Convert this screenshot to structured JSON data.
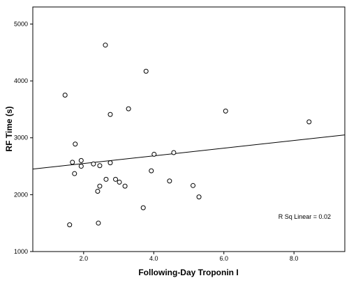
{
  "chart_data": {
    "type": "scatter",
    "title": "",
    "xlabel": "Following-Day Troponin I",
    "ylabel": "RF Time (s)",
    "xlim": [
      0.55,
      9.45
    ],
    "ylim": [
      1000,
      5300
    ],
    "x_ticks": [
      2.0,
      4.0,
      6.0,
      8.0
    ],
    "x_tick_labels": [
      "2.0",
      "4.0",
      "6.0",
      "8.0"
    ],
    "y_ticks": [
      1000,
      2000,
      3000,
      4000,
      5000
    ],
    "y_tick_labels": [
      "1000",
      "2000",
      "3000",
      "4000",
      "5000"
    ],
    "grid": false,
    "legend": "none",
    "annotation": "R Sq Linear = 0.02",
    "marker": "open-circle",
    "fit_line": {
      "type": "linear",
      "points": [
        [
          0.55,
          2450
        ],
        [
          9.45,
          3050
        ]
      ]
    },
    "points": [
      {
        "x": 2.62,
        "y": 4630
      },
      {
        "x": 3.78,
        "y": 4170
      },
      {
        "x": 1.47,
        "y": 3750
      },
      {
        "x": 3.28,
        "y": 3510
      },
      {
        "x": 2.76,
        "y": 3410
      },
      {
        "x": 6.05,
        "y": 3470
      },
      {
        "x": 8.43,
        "y": 3280
      },
      {
        "x": 1.76,
        "y": 2890
      },
      {
        "x": 4.57,
        "y": 2740
      },
      {
        "x": 4.01,
        "y": 2710
      },
      {
        "x": 1.93,
        "y": 2600
      },
      {
        "x": 1.68,
        "y": 2570
      },
      {
        "x": 2.76,
        "y": 2560
      },
      {
        "x": 2.28,
        "y": 2540
      },
      {
        "x": 2.46,
        "y": 2510
      },
      {
        "x": 1.93,
        "y": 2500
      },
      {
        "x": 3.93,
        "y": 2420
      },
      {
        "x": 1.74,
        "y": 2370
      },
      {
        "x": 2.64,
        "y": 2270
      },
      {
        "x": 2.91,
        "y": 2270
      },
      {
        "x": 3.02,
        "y": 2220
      },
      {
        "x": 4.45,
        "y": 2240
      },
      {
        "x": 2.46,
        "y": 2150
      },
      {
        "x": 3.18,
        "y": 2150
      },
      {
        "x": 5.12,
        "y": 2160
      },
      {
        "x": 2.4,
        "y": 2060
      },
      {
        "x": 5.29,
        "y": 1960
      },
      {
        "x": 3.7,
        "y": 1770
      },
      {
        "x": 1.6,
        "y": 1470
      },
      {
        "x": 2.42,
        "y": 1500
      }
    ]
  }
}
